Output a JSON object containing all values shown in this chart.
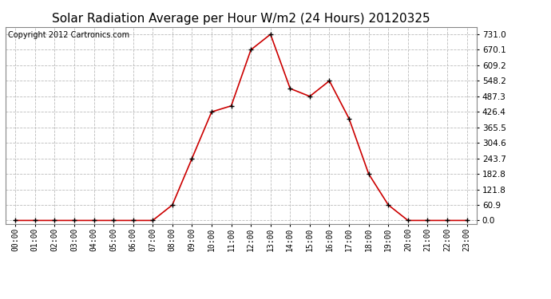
{
  "title": "Solar Radiation Average per Hour W/m2 (24 Hours) 20120325",
  "copyright": "Copyright 2012 Cartronics.com",
  "hours": [
    "00:00",
    "01:00",
    "02:00",
    "03:00",
    "04:00",
    "05:00",
    "06:00",
    "07:00",
    "08:00",
    "09:00",
    "10:00",
    "11:00",
    "12:00",
    "13:00",
    "14:00",
    "15:00",
    "16:00",
    "17:00",
    "18:00",
    "19:00",
    "20:00",
    "21:00",
    "22:00",
    "23:00"
  ],
  "values": [
    0.0,
    0.0,
    0.0,
    0.0,
    0.0,
    0.0,
    0.0,
    0.0,
    60.9,
    243.7,
    426.4,
    450.0,
    670.1,
    731.0,
    518.0,
    487.3,
    548.2,
    400.0,
    182.8,
    60.9,
    0.0,
    0.0,
    0.0,
    0.0
  ],
  "y_ticks": [
    0.0,
    60.9,
    121.8,
    182.8,
    243.7,
    304.6,
    365.5,
    426.4,
    487.3,
    548.2,
    609.2,
    670.1,
    731.0
  ],
  "line_color": "#cc0000",
  "marker": "+",
  "marker_color": "#000000",
  "bg_color": "#ffffff",
  "grid_color": "#bbbbbb",
  "title_fontsize": 11,
  "copyright_fontsize": 7
}
